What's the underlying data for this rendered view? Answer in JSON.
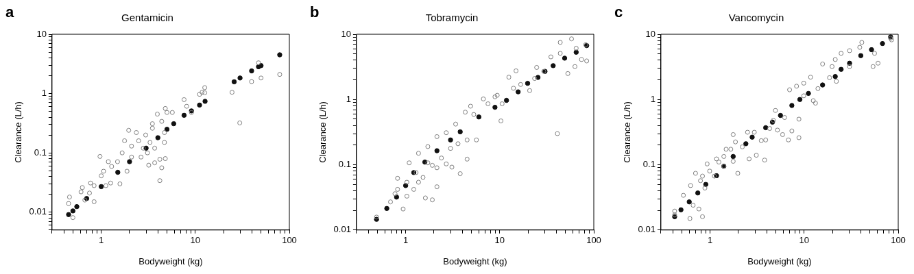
{
  "chart_data": [
    {
      "type": "scatter",
      "title": "Gentamicin",
      "xlabel": "Bodyweight (kg)",
      "ylabel": "Clearance (L/h)",
      "annotations": [
        "a"
      ],
      "log": "xy",
      "grid": false,
      "legend": false,
      "marker": "circle",
      "xlim": [
        0.3,
        100
      ],
      "ylim": [
        0.005,
        10
      ],
      "xticks": [
        {
          "value": 0.3,
          "label": null
        },
        {
          "value": 0.4,
          "label": null
        },
        {
          "value": 0.5,
          "label": null
        },
        {
          "value": 0.6,
          "label": null
        },
        {
          "value": 0.7,
          "label": null
        },
        {
          "value": 0.8,
          "label": null
        },
        {
          "value": 0.9,
          "label": null
        },
        1,
        {
          "value": 2,
          "label": null
        },
        {
          "value": 3,
          "label": null
        },
        {
          "value": 4,
          "label": null
        },
        {
          "value": 5,
          "label": null
        },
        {
          "value": 6,
          "label": null
        },
        {
          "value": 7,
          "label": null
        },
        {
          "value": 8,
          "label": null
        },
        {
          "value": 9,
          "label": null
        },
        10,
        {
          "value": 20,
          "label": null
        },
        {
          "value": 30,
          "label": null
        },
        {
          "value": 40,
          "label": null
        },
        {
          "value": 50,
          "label": null
        },
        {
          "value": 60,
          "label": null
        },
        {
          "value": 70,
          "label": null
        },
        {
          "value": 80,
          "label": null
        },
        {
          "value": 90,
          "label": null
        },
        100
      ],
      "yticks": [
        {
          "value": 0.005,
          "label": null
        },
        {
          "value": 0.006,
          "label": null
        },
        {
          "value": 0.007,
          "label": null
        },
        {
          "value": 0.008,
          "label": null
        },
        {
          "value": 0.009,
          "label": null
        },
        0.01,
        {
          "value": 0.02,
          "label": null
        },
        {
          "value": 0.03,
          "label": null
        },
        {
          "value": 0.04,
          "label": null
        },
        {
          "value": 0.05,
          "label": null
        },
        {
          "value": 0.06,
          "label": null
        },
        {
          "value": 0.07,
          "label": null
        },
        {
          "value": 0.08,
          "label": null
        },
        {
          "value": 0.09,
          "label": null
        },
        0.1,
        {
          "value": 0.2,
          "label": null
        },
        {
          "value": 0.3,
          "label": null
        },
        {
          "value": 0.4,
          "label": null
        },
        {
          "value": 0.5,
          "label": null
        },
        {
          "value": 0.6,
          "label": null
        },
        {
          "value": 0.7,
          "label": null
        },
        {
          "value": 0.8,
          "label": null
        },
        {
          "value": 0.9,
          "label": null
        },
        1,
        {
          "value": 2,
          "label": null
        },
        {
          "value": 3,
          "label": null
        },
        {
          "value": 4,
          "label": null
        },
        {
          "value": 5,
          "label": null
        },
        {
          "value": 6,
          "label": null
        },
        {
          "value": 7,
          "label": null
        },
        {
          "value": 8,
          "label": null
        },
        {
          "value": 9,
          "label": null
        },
        10
      ],
      "series": [
        {
          "color": "#808080",
          "x": [
            24.6,
            29.7,
            39.7,
            47,
            50,
            79,
            7.6,
            8.1,
            11.1,
            12.6,
            11.8,
            12.6,
            9.1,
            4.8,
            5.0,
            5.7,
            4.2,
            4.4,
            4.8,
            4.2,
            3.2,
            3.7,
            0.97,
            1.58,
            1.96,
            1.29,
            0.46,
            0.45,
            0.5,
            0.61,
            0.63,
            0.77,
            0.84,
            1.06,
            1.26,
            1.88,
            2.1,
            2.5,
            2.97,
            3.5,
            3.95,
            3.5,
            4.4,
            2.65,
            3.1,
            3.7,
            4.7,
            2.36,
            1.67,
            1.49,
            1.19,
            1.0,
            0.84,
            0.75,
            0.67,
            1.12,
            1.77,
            2.8,
            3.3,
            4.7,
            2.1
          ],
          "values": [
            1.05,
            0.32,
            1.59,
            3.3,
            1.83,
            2.1,
            0.79,
            0.61,
            0.97,
            1.26,
            1.05,
            1.03,
            0.48,
            0.56,
            0.48,
            0.48,
            0.034,
            0.056,
            0.08,
            0.078,
            0.062,
            0.068,
            0.087,
            0.03,
            0.24,
            0.059,
            0.018,
            0.014,
            0.0081,
            0.022,
            0.026,
            0.031,
            0.015,
            0.049,
            0.031,
            0.049,
            0.13,
            0.16,
            0.2,
            0.26,
            0.45,
            0.31,
            0.34,
            0.085,
            0.1,
            0.12,
            0.15,
            0.22,
            0.1,
            0.071,
            0.071,
            0.041,
            0.028,
            0.021,
            0.016,
            0.028,
            0.16,
            0.12,
            0.15,
            0.22,
            0.085
          ]
        },
        {
          "color": "#111111",
          "x": [
            0.45,
            0.5,
            0.55,
            0.7,
            1,
            1.5,
            2,
            3,
            4,
            5,
            5.9,
            7.6,
            9.1,
            11.1,
            12.7,
            25.9,
            29.9,
            39.7,
            47,
            50,
            79
          ],
          "values": [
            0.0091,
            0.0105,
            0.0124,
            0.017,
            0.027,
            0.047,
            0.071,
            0.12,
            0.18,
            0.25,
            0.31,
            0.43,
            0.51,
            0.64,
            0.74,
            1.58,
            1.83,
            2.41,
            2.83,
            2.96,
            4.5
          ]
        }
      ]
    },
    {
      "type": "scatter",
      "title": "Tobramycin",
      "xlabel": "Bodyweight (kg)",
      "ylabel": "Clearance (L/h)",
      "annotations": [
        "b"
      ],
      "log": "xy",
      "grid": false,
      "legend": false,
      "marker": "circle",
      "xlim": [
        0.3,
        100
      ],
      "ylim": [
        0.01,
        10
      ],
      "xticks": [
        {
          "value": 0.3,
          "label": null
        },
        {
          "value": 0.4,
          "label": null
        },
        {
          "value": 0.5,
          "label": null
        },
        {
          "value": 0.6,
          "label": null
        },
        {
          "value": 0.7,
          "label": null
        },
        {
          "value": 0.8,
          "label": null
        },
        {
          "value": 0.9,
          "label": null
        },
        1,
        {
          "value": 2,
          "label": null
        },
        {
          "value": 3,
          "label": null
        },
        {
          "value": 4,
          "label": null
        },
        {
          "value": 5,
          "label": null
        },
        {
          "value": 6,
          "label": null
        },
        {
          "value": 7,
          "label": null
        },
        {
          "value": 8,
          "label": null
        },
        {
          "value": 9,
          "label": null
        },
        10,
        {
          "value": 20,
          "label": null
        },
        {
          "value": 30,
          "label": null
        },
        {
          "value": 40,
          "label": null
        },
        {
          "value": 50,
          "label": null
        },
        {
          "value": 60,
          "label": null
        },
        {
          "value": 70,
          "label": null
        },
        {
          "value": 80,
          "label": null
        },
        {
          "value": 90,
          "label": null
        },
        100
      ],
      "yticks": [
        0.01,
        {
          "value": 0.02,
          "label": null
        },
        {
          "value": 0.03,
          "label": null
        },
        {
          "value": 0.04,
          "label": null
        },
        {
          "value": 0.05,
          "label": null
        },
        {
          "value": 0.06,
          "label": null
        },
        {
          "value": 0.07,
          "label": null
        },
        {
          "value": 0.08,
          "label": null
        },
        {
          "value": 0.09,
          "label": null
        },
        0.1,
        {
          "value": 0.2,
          "label": null
        },
        {
          "value": 0.3,
          "label": null
        },
        {
          "value": 0.4,
          "label": null
        },
        {
          "value": 0.5,
          "label": null
        },
        {
          "value": 0.6,
          "label": null
        },
        {
          "value": 0.7,
          "label": null
        },
        {
          "value": 0.8,
          "label": null
        },
        {
          "value": 0.9,
          "label": null
        },
        1,
        {
          "value": 2,
          "label": null
        },
        {
          "value": 3,
          "label": null
        },
        {
          "value": 4,
          "label": null
        },
        {
          "value": 5,
          "label": null
        },
        {
          "value": 6,
          "label": null
        },
        {
          "value": 7,
          "label": null
        },
        {
          "value": 8,
          "label": null
        },
        {
          "value": 9,
          "label": null
        },
        10
      ],
      "series": [
        {
          "color": "#808080",
          "x": [
            0.49,
            41,
            58,
            44,
            84,
            74,
            63,
            53,
            35,
            44,
            23.5,
            24.7,
            14.9,
            12.5,
            10.3,
            8.9,
            6.7,
            4.9,
            5.65,
            4.5,
            4.5,
            3.8,
            3.1,
            2.7,
            2.15,
            1.92,
            1.62,
            0.94,
            0.82,
            0.77,
            1.09,
            1.37,
            1.72,
            2.15,
            2.7,
            3.4,
            4.3,
            5.3,
            7.5,
            9.4,
            10.6,
            14,
            16.7,
            20.8,
            29.4,
            65,
            82,
            0.69,
            0.82,
            1.03,
            1.29,
            1.53,
            1.03,
            1.37,
            1.92,
            2.4,
            3.0,
            3.6,
            1.22,
            1.72,
            2.15
          ],
          "values": [
            0.0158,
            0.3,
            8.5,
            7.5,
            3.9,
            4.1,
            3.2,
            2.5,
            4.5,
            5.1,
            2.1,
            3.1,
            2.75,
            2.2,
            0.47,
            1.1,
            1.02,
            0.79,
            0.24,
            0.24,
            0.122,
            0.073,
            0.092,
            0.103,
            0.046,
            0.029,
            0.031,
            0.021,
            0.062,
            0.036,
            0.107,
            0.15,
            0.19,
            0.27,
            0.31,
            0.42,
            0.64,
            0.59,
            0.86,
            1.16,
            0.86,
            1.49,
            1.7,
            1.37,
            2.7,
            6.1,
            6.9,
            0.027,
            0.042,
            0.054,
            0.076,
            0.064,
            0.033,
            0.054,
            0.098,
            0.127,
            0.178,
            0.21,
            0.042,
            0.107,
            0.09
          ]
        },
        {
          "color": "#111111",
          "x": [
            0.49,
            0.63,
            0.8,
            1,
            1.22,
            1.6,
            2.15,
            3,
            3.8,
            6.0,
            8.9,
            11.8,
            15.7,
            19.8,
            25.5,
            30.3,
            37,
            49,
            65,
            84
          ],
          "values": [
            0.0146,
            0.0214,
            0.032,
            0.048,
            0.076,
            0.11,
            0.164,
            0.24,
            0.32,
            0.54,
            0.76,
            0.97,
            1.31,
            1.77,
            2.18,
            2.7,
            3.3,
            4.3,
            5.3,
            6.7
          ]
        }
      ]
    },
    {
      "type": "scatter",
      "title": "Vancomycin",
      "xlabel": "Bodyweight (kg)",
      "ylabel": "Clearance (L/h)",
      "annotations": [
        "c"
      ],
      "log": "xy",
      "grid": false,
      "legend": false,
      "marker": "circle",
      "xlim": [
        0.3,
        100
      ],
      "ylim": [
        0.01,
        10
      ],
      "xticks": [
        {
          "value": 0.3,
          "label": null
        },
        {
          "value": 0.4,
          "label": null
        },
        {
          "value": 0.5,
          "label": null
        },
        {
          "value": 0.6,
          "label": null
        },
        {
          "value": 0.7,
          "label": null
        },
        {
          "value": 0.8,
          "label": null
        },
        {
          "value": 0.9,
          "label": null
        },
        1,
        {
          "value": 2,
          "label": null
        },
        {
          "value": 3,
          "label": null
        },
        {
          "value": 4,
          "label": null
        },
        {
          "value": 5,
          "label": null
        },
        {
          "value": 6,
          "label": null
        },
        {
          "value": 7,
          "label": null
        },
        {
          "value": 8,
          "label": null
        },
        {
          "value": 9,
          "label": null
        },
        10,
        {
          "value": 20,
          "label": null
        },
        {
          "value": 30,
          "label": null
        },
        {
          "value": 40,
          "label": null
        },
        {
          "value": 50,
          "label": null
        },
        {
          "value": 60,
          "label": null
        },
        {
          "value": 70,
          "label": null
        },
        {
          "value": 80,
          "label": null
        },
        {
          "value": 90,
          "label": null
        },
        100
      ],
      "yticks": [
        0.01,
        {
          "value": 0.02,
          "label": null
        },
        {
          "value": 0.03,
          "label": null
        },
        {
          "value": 0.04,
          "label": null
        },
        {
          "value": 0.05,
          "label": null
        },
        {
          "value": 0.06,
          "label": null
        },
        {
          "value": 0.07,
          "label": null
        },
        {
          "value": 0.08,
          "label": null
        },
        {
          "value": 0.09,
          "label": null
        },
        0.1,
        {
          "value": 0.2,
          "label": null
        },
        {
          "value": 0.3,
          "label": null
        },
        {
          "value": 0.4,
          "label": null
        },
        {
          "value": 0.5,
          "label": null
        },
        {
          "value": 0.6,
          "label": null
        },
        {
          "value": 0.7,
          "label": null
        },
        {
          "value": 0.8,
          "label": null
        },
        {
          "value": 0.9,
          "label": null
        },
        1,
        {
          "value": 2,
          "label": null
        },
        {
          "value": 3,
          "label": null
        },
        {
          "value": 4,
          "label": null
        },
        {
          "value": 5,
          "label": null
        },
        {
          "value": 6,
          "label": null
        },
        {
          "value": 7,
          "label": null
        },
        {
          "value": 8,
          "label": null
        },
        {
          "value": 9,
          "label": null
        },
        10
      ],
      "series": [
        {
          "color": "#808080",
          "x": [
            0.42,
            0.42,
            0.61,
            0.83,
            0.76,
            0.66,
            0.52,
            0.62,
            0.7,
            0.79,
            0.93,
            0.88,
            1.11,
            1.17,
            1.4,
            1.48,
            1.76,
            1.97,
            1.86,
            2.2,
            2.6,
            3.1,
            3.8,
            2.95,
            3.5,
            3.9,
            4.3,
            4.95,
            5.2,
            5.9,
            6.8,
            7.4,
            8.8,
            8.8,
            7.0,
            8.3,
            9.9,
            12.5,
            13.2,
            11.7,
            15.7,
            19.8,
            21.4,
            24.7,
            30.4,
            22,
            30.4,
            41,
            54,
            61,
            56,
            85,
            83,
            1.76,
            2.5,
            4.7,
            6.2,
            9.9,
            14,
            18.6,
            39,
            0.99,
            1.24,
            0.83,
            1.4,
            1.66
          ],
          "values": [
            0.0195,
            0.017,
            0.015,
            0.016,
            0.021,
            0.024,
            0.034,
            0.048,
            0.074,
            0.057,
            0.103,
            0.044,
            0.067,
            0.123,
            0.095,
            0.173,
            0.113,
            0.074,
            0.224,
            0.188,
            0.123,
            0.14,
            0.118,
            0.315,
            0.234,
            0.24,
            0.36,
            0.68,
            0.34,
            0.29,
            0.24,
            0.33,
            0.26,
            0.5,
            1.41,
            1.6,
            1.78,
            0.96,
            0.88,
            2.2,
            3.5,
            3.2,
            4.1,
            5.1,
            5.6,
            1.9,
            3.2,
            7.5,
            3.2,
            3.6,
            5.1,
            8.2,
            8.7,
            0.29,
            0.315,
            0.48,
            0.53,
            1.14,
            1.47,
            2.16,
            6.3,
            0.08,
            0.11,
            0.067,
            0.134,
            0.173
          ]
        },
        {
          "color": "#111111",
          "x": [
            0.42,
            0.49,
            0.6,
            0.74,
            0.9,
            1.17,
            1.4,
            1.76,
            2.4,
            2.8,
            3.9,
            4.6,
            5.6,
            7.4,
            9,
            11.1,
            15.7,
            21.4,
            24.7,
            30.4,
            40,
            52,
            68,
            83
          ],
          "values": [
            0.016,
            0.0204,
            0.027,
            0.037,
            0.05,
            0.068,
            0.095,
            0.134,
            0.21,
            0.265,
            0.37,
            0.45,
            0.57,
            0.81,
            1.0,
            1.24,
            1.67,
            2.25,
            2.9,
            3.6,
            4.7,
            5.8,
            7.2,
            9.1
          ]
        }
      ]
    }
  ]
}
